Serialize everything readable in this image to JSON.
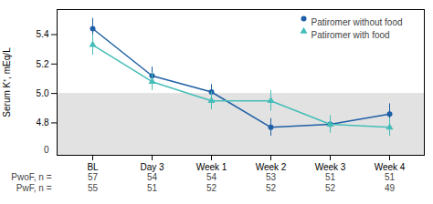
{
  "chart_data": {
    "type": "line",
    "categories": [
      "BL",
      "Day 3",
      "Week 1",
      "Week 2",
      "Week 3",
      "Week 4"
    ],
    "series": [
      {
        "name": "Patiromer without food",
        "color": "#1f5fa6",
        "marker": "circle",
        "values": [
          5.44,
          5.12,
          5.01,
          4.77,
          4.79,
          4.86
        ],
        "errors": [
          0.07,
          0.06,
          0.05,
          0.06,
          0.05,
          0.07
        ],
        "n_label": "PwoF, n =",
        "n": [
          57,
          54,
          54,
          53,
          51,
          51
        ]
      },
      {
        "name": "Patiromer with food",
        "color": "#45bdb8",
        "marker": "triangle",
        "values": [
          5.33,
          5.08,
          4.95,
          4.95,
          4.79,
          4.77
        ],
        "errors": [
          0.07,
          0.06,
          0.06,
          0.07,
          0.06,
          0.06
        ],
        "n_label": "PwF, n =",
        "n": [
          55,
          51,
          52,
          52,
          52,
          49
        ]
      }
    ],
    "ylabel": "Serum K⁺, mEq/L",
    "ylim": [
      4.58,
      5.57
    ],
    "yticks": [
      4.8,
      {
        "value": 5.0,
        "label": "5.0"
      },
      5.2,
      5.4
    ],
    "band": {
      "y1": 4.58,
      "y2": 5.0,
      "color": "#e2e2e2"
    },
    "annotations": [
      {
        "text": "0",
        "y": 4.615
      }
    ],
    "legend": "upper right",
    "grid": false
  }
}
